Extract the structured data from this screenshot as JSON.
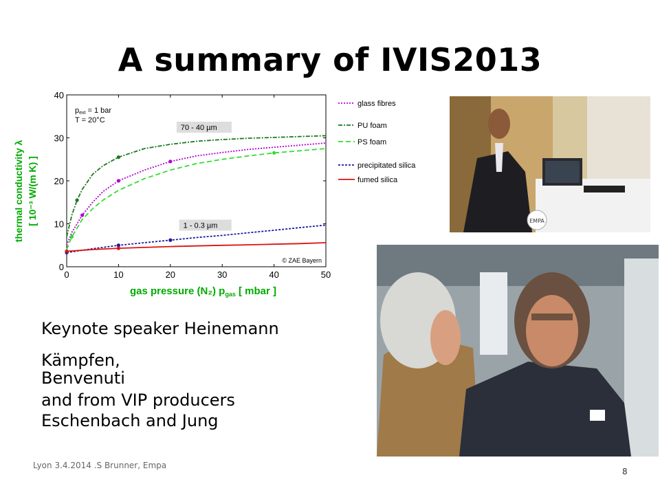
{
  "slide": {
    "title": "A summary of IVIS2013",
    "body_lines": [
      "Keynote speaker Heinemann",
      "Kämpfen,",
      "Benvenuti",
      "and from VIP producers",
      "Eschenbach and Jung"
    ],
    "footer": "Lyon 3.4.2014 .S Brunner, Empa",
    "page_number": "8"
  },
  "photos": [
    {
      "name": "speaker-photo",
      "description_icon": "photo-icon"
    },
    {
      "name": "discussion-photo",
      "description_icon": "photo-icon"
    }
  ],
  "chart_data": {
    "type": "line",
    "ylabel_line1": "thermal conductivity λ",
    "ylabel_line2": "[ 10⁻³ W/(m K) ]",
    "xlabel": "gas pressure (N₂)  p",
    "xlabel_sub": "gas",
    "xlabel_unit": "[ mbar ]",
    "xlim": [
      0,
      50
    ],
    "ylim": [
      0,
      40
    ],
    "xticks": [
      0,
      10,
      20,
      30,
      40,
      50
    ],
    "yticks": [
      0,
      10,
      20,
      30,
      40
    ],
    "condition_line1": "p",
    "condition_line1_sub": "ext",
    "condition_line1_rest": " = 1 bar",
    "condition_line2": "T = 20°C",
    "annotation_top": "70 - 40 µm",
    "annotation_bottom": "1 - 0.3 µm",
    "copyright": "© ZAE Bayern",
    "colors": {
      "purple": "#b000d0",
      "darkgreen": "#1a7a1a",
      "lightgreen": "#33dd33",
      "blue": "#1a1aa0",
      "red": "#dd1111",
      "label_green": "#00aa00"
    },
    "series": [
      {
        "name": "glass fibres",
        "color": "#b000d0",
        "dash": "2,2",
        "x": [
          0,
          1,
          2,
          3,
          5,
          7,
          10,
          15,
          20,
          25,
          30,
          35,
          40,
          45,
          50
        ],
        "y": [
          5,
          8,
          10,
          12,
          15,
          17.5,
          20,
          22.5,
          24.5,
          25.8,
          26.6,
          27.3,
          27.8,
          28.3,
          28.8
        ]
      },
      {
        "name": "PU foam",
        "color": "#1a7a1a",
        "dash": "6,2,2,2",
        "x": [
          0,
          1,
          2,
          3,
          5,
          7,
          10,
          15,
          20,
          25,
          30,
          35,
          40,
          45,
          50
        ],
        "y": [
          7,
          12,
          15.5,
          18,
          21.5,
          23.5,
          25.5,
          27.5,
          28.5,
          29.2,
          29.6,
          29.9,
          30.1,
          30.3,
          30.5
        ]
      },
      {
        "name": "PS foam",
        "color": "#33dd33",
        "dash": "7,4",
        "x": [
          0,
          1,
          2,
          3,
          5,
          7,
          10,
          15,
          20,
          25,
          30,
          35,
          40,
          45,
          50
        ],
        "y": [
          4,
          7,
          9,
          11,
          13.5,
          15.5,
          17.8,
          20.5,
          22.5,
          24,
          25,
          25.8,
          26.5,
          27,
          27.5
        ]
      },
      {
        "name": "precipitated silica",
        "color": "#1a1aa0",
        "dash": "3,2",
        "x": [
          0,
          5,
          10,
          15,
          20,
          25,
          30,
          35,
          40,
          45,
          50
        ],
        "y": [
          3.3,
          4.2,
          5,
          5.6,
          6.2,
          6.8,
          7.3,
          7.9,
          8.5,
          9.1,
          9.7
        ]
      },
      {
        "name": "fumed silica",
        "color": "#dd1111",
        "dash": "",
        "x": [
          0,
          5,
          10,
          15,
          20,
          25,
          30,
          35,
          40,
          45,
          50
        ],
        "y": [
          3.6,
          4,
          4.3,
          4.5,
          4.7,
          4.85,
          5,
          5.1,
          5.25,
          5.4,
          5.6
        ]
      }
    ],
    "markers": [
      {
        "series": 0,
        "x": [
          3,
          10,
          20
        ],
        "y": [
          12,
          20,
          24.5
        ]
      },
      {
        "series": 1,
        "x": [
          2,
          10
        ],
        "y": [
          15.5,
          25.5
        ]
      },
      {
        "series": 2,
        "x": [
          1,
          40
        ],
        "y": [
          7,
          26.5
        ]
      },
      {
        "series": 3,
        "x": [
          0,
          10,
          20
        ],
        "y": [
          3.3,
          5,
          6.2
        ]
      },
      {
        "series": 4,
        "x": [
          0,
          10
        ],
        "y": [
          3.6,
          4.3
        ]
      }
    ]
  }
}
